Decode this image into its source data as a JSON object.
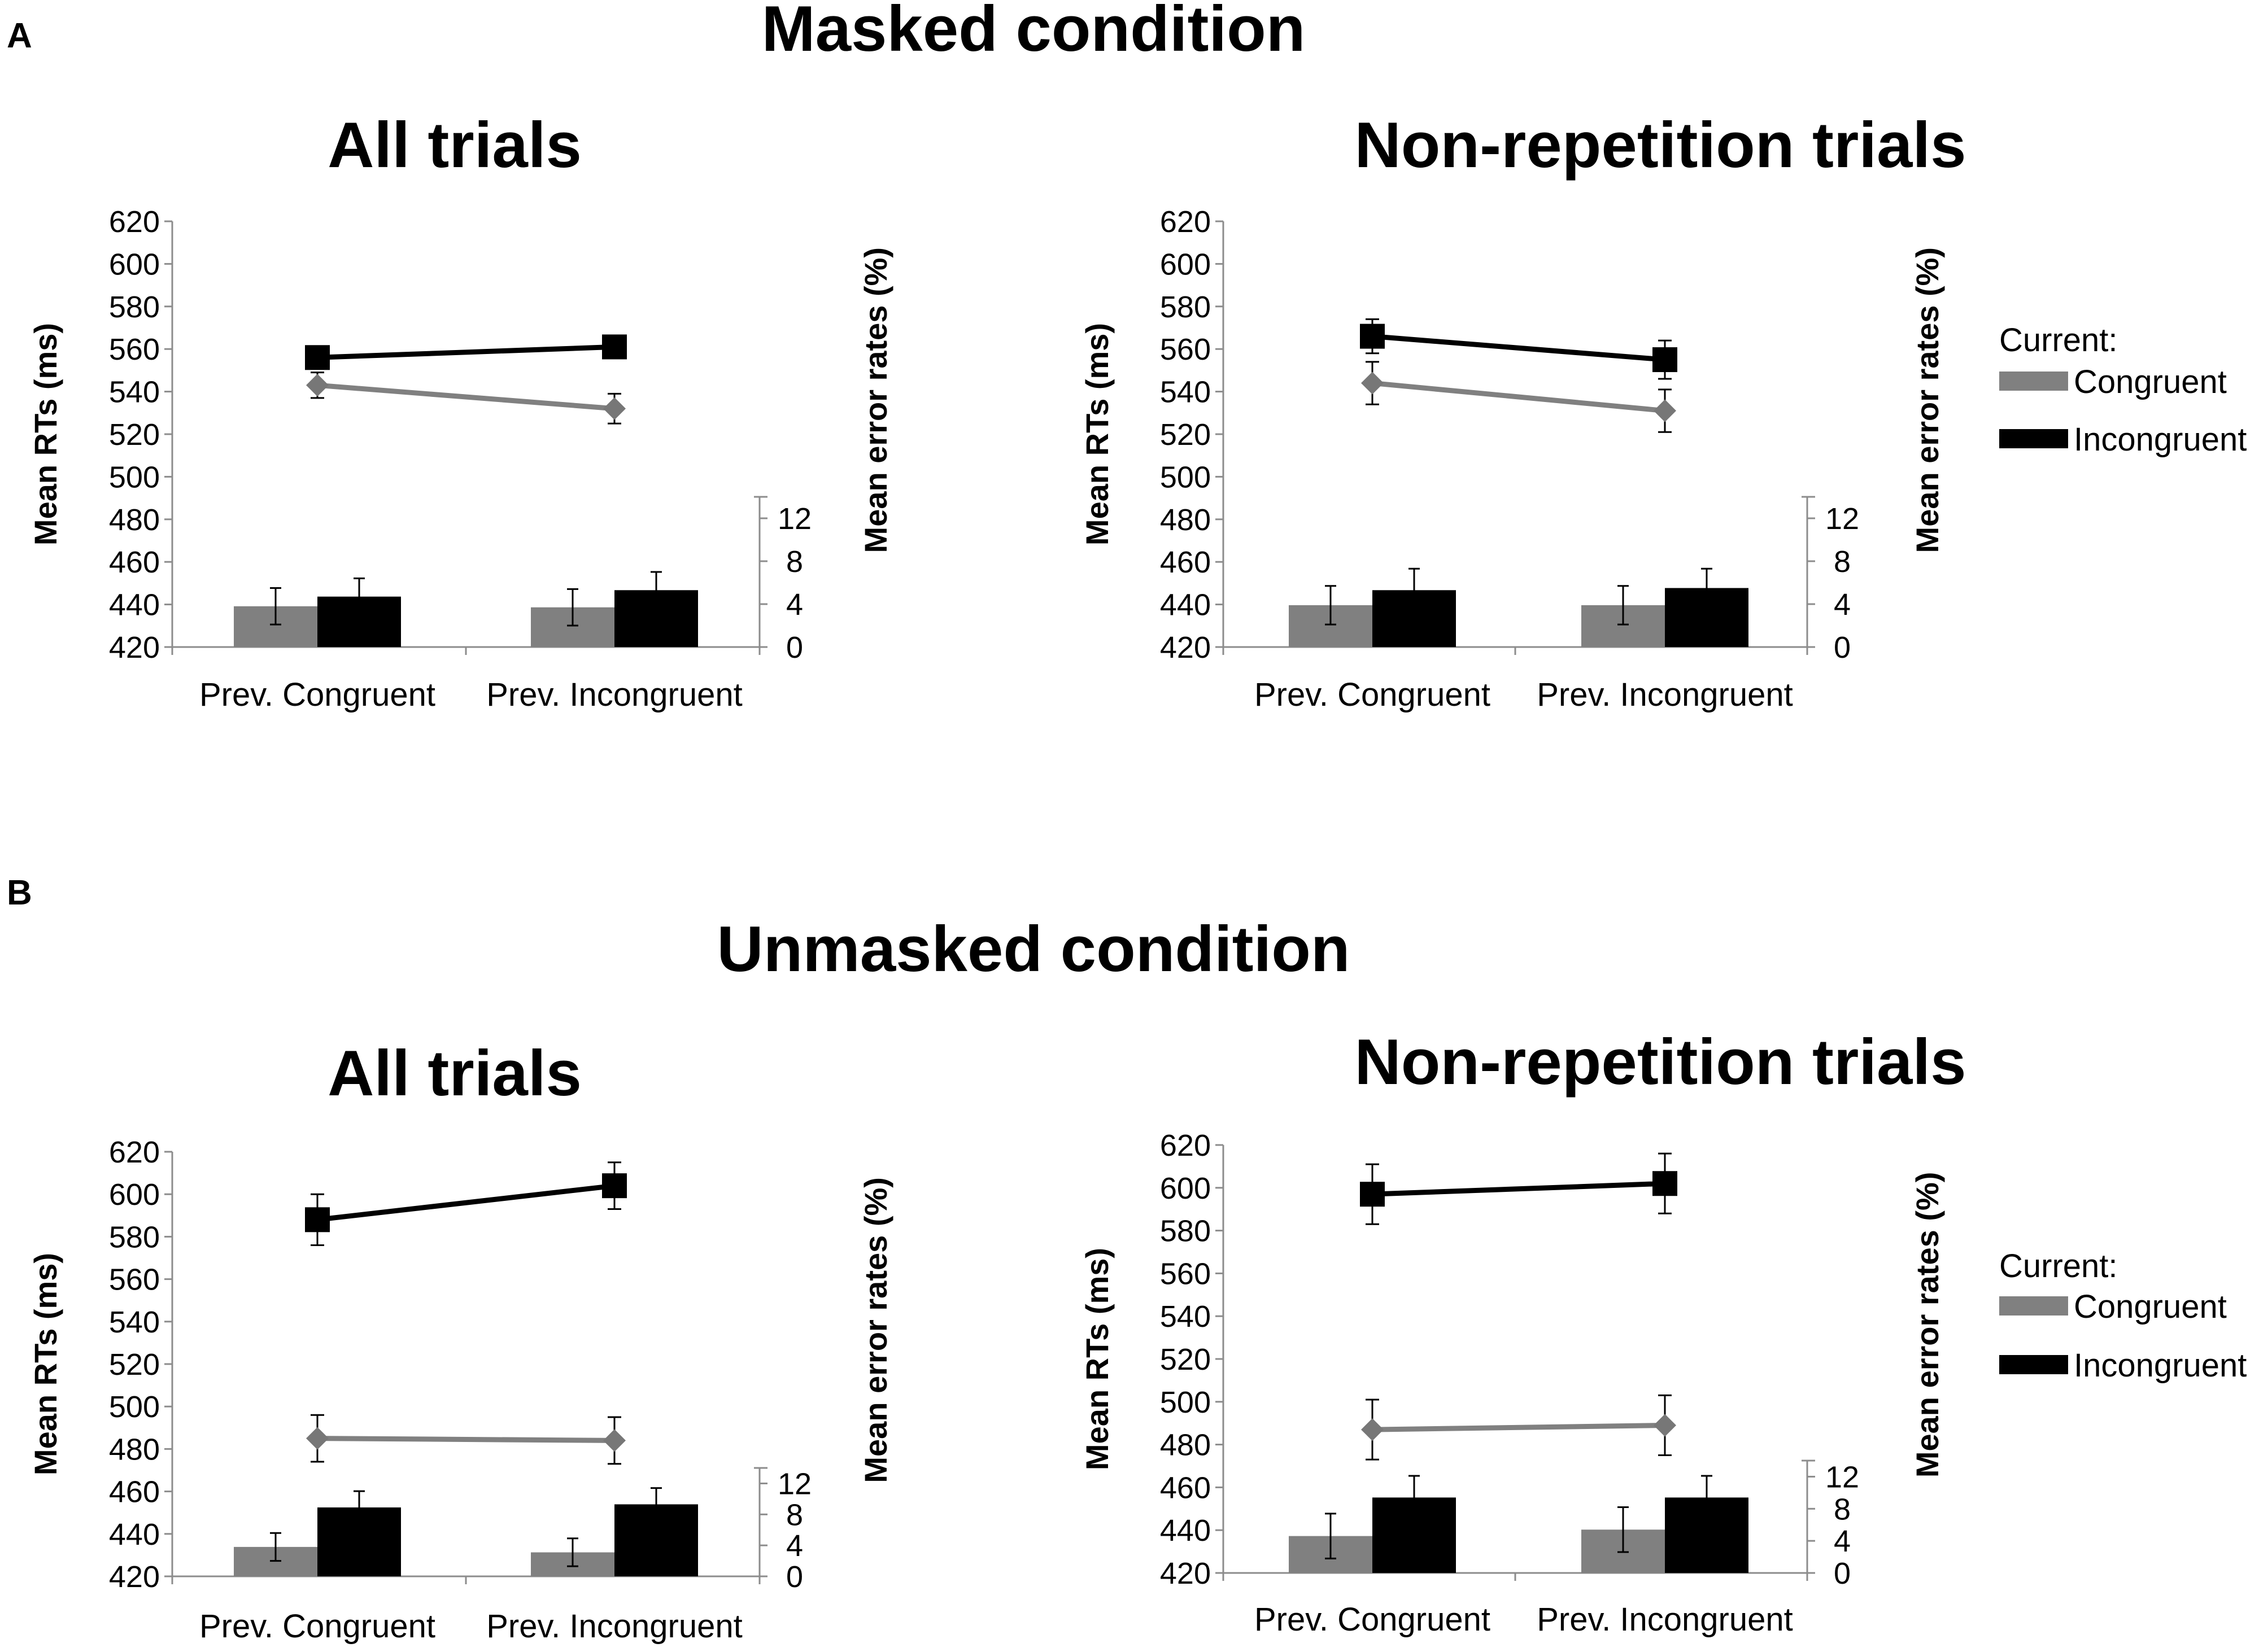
{
  "panels": [
    {
      "letter": "A",
      "title": "Masked condition"
    },
    {
      "letter": "B",
      "title": "Unmasked condition"
    }
  ],
  "legend": {
    "title": "Current:",
    "items": [
      {
        "label": "Congruent",
        "color": "#808080"
      },
      {
        "label": "Incongruent",
        "color": "#000000"
      }
    ]
  },
  "colors": {
    "congruent": "#808080",
    "incongruent": "#000000",
    "congruent_marker": "#777777",
    "axis": "#8c8c8c"
  },
  "chart_data": [
    {
      "type": "bar+line",
      "panel": "A",
      "title": "All trials",
      "categories": [
        "Prev. Congruent",
        "Prev. Incongruent"
      ],
      "ylabel": "Mean RTs (ms)",
      "ylim": [
        420,
        620
      ],
      "yticks": [
        620,
        600,
        580,
        560,
        540,
        520,
        500,
        480,
        460,
        440,
        420
      ],
      "y2label": "Mean error rates (%)",
      "y2lim": [
        0,
        14
      ],
      "y2ticks": [
        12,
        8,
        4,
        0
      ],
      "rt_series": [
        {
          "name": "Congruent",
          "values": [
            543,
            532
          ],
          "errors": [
            6,
            7
          ]
        },
        {
          "name": "Incongruent",
          "values": [
            556,
            561
          ],
          "errors": [
            5,
            5
          ]
        }
      ],
      "error_series": [
        {
          "name": "Congruent",
          "values": [
            3.8,
            3.7
          ],
          "errors": [
            1.7,
            1.7
          ]
        },
        {
          "name": "Incongruent",
          "values": [
            4.7,
            5.3
          ],
          "errors": [
            1.7,
            1.7
          ]
        }
      ]
    },
    {
      "type": "bar+line",
      "panel": "A",
      "title": "Non-repetition trials",
      "categories": [
        "Prev. Congruent",
        "Prev. Incongruent"
      ],
      "ylabel": "Mean RTs (ms)",
      "ylim": [
        420,
        620
      ],
      "yticks": [
        620,
        600,
        580,
        560,
        540,
        520,
        500,
        480,
        460,
        440,
        420
      ],
      "y2label": "Mean error rates (%)",
      "y2lim": [
        0,
        14
      ],
      "y2ticks": [
        12,
        8,
        4,
        0
      ],
      "rt_series": [
        {
          "name": "Congruent",
          "values": [
            544,
            531
          ],
          "errors": [
            10,
            10
          ]
        },
        {
          "name": "Incongruent",
          "values": [
            566,
            555
          ],
          "errors": [
            8,
            9
          ]
        }
      ],
      "error_series": [
        {
          "name": "Congruent",
          "values": [
            3.9,
            3.9
          ],
          "errors": [
            1.8,
            1.8
          ]
        },
        {
          "name": "Incongruent",
          "values": [
            5.3,
            5.5
          ],
          "errors": [
            2.0,
            1.8
          ]
        }
      ]
    },
    {
      "type": "bar+line",
      "panel": "B",
      "title": "All trials",
      "categories": [
        "Prev. Congruent",
        "Prev. Incongruent"
      ],
      "ylabel": "Mean RTs (ms)",
      "ylim": [
        420,
        620
      ],
      "yticks": [
        620,
        600,
        580,
        560,
        540,
        520,
        500,
        480,
        460,
        440,
        420
      ],
      "y2label": "Mean error rates (%)",
      "y2lim": [
        0,
        14
      ],
      "y2ticks": [
        12,
        8,
        4,
        0
      ],
      "rt_series": [
        {
          "name": "Congruent",
          "values": [
            485,
            484
          ],
          "errors": [
            11,
            11
          ]
        },
        {
          "name": "Incongruent",
          "values": [
            588,
            604
          ],
          "errors": [
            12,
            11
          ]
        }
      ],
      "error_series": [
        {
          "name": "Congruent",
          "values": [
            3.8,
            3.1
          ],
          "errors": [
            1.8,
            1.8
          ]
        },
        {
          "name": "Incongruent",
          "values": [
            8.9,
            9.3
          ],
          "errors": [
            2.1,
            2.1
          ]
        }
      ]
    },
    {
      "type": "bar+line",
      "panel": "B",
      "title": "Non-repetition trials",
      "categories": [
        "Prev. Congruent",
        "Prev. Incongruent"
      ],
      "ylabel": "Mean RTs (ms)",
      "ylim": [
        420,
        620
      ],
      "yticks": [
        620,
        600,
        580,
        560,
        540,
        520,
        500,
        480,
        460,
        440,
        420
      ],
      "y2label": "Mean error rates (%)",
      "y2lim": [
        0,
        14
      ],
      "y2ticks": [
        12,
        8,
        4,
        0
      ],
      "rt_series": [
        {
          "name": "Congruent",
          "values": [
            487,
            489
          ],
          "errors": [
            14,
            14
          ]
        },
        {
          "name": "Incongruent",
          "values": [
            597,
            602
          ],
          "errors": [
            14,
            14
          ]
        }
      ],
      "error_series": [
        {
          "name": "Congruent",
          "values": [
            4.6,
            5.4
          ],
          "errors": [
            2.8,
            2.8
          ]
        },
        {
          "name": "Incongruent",
          "values": [
            9.4,
            9.4
          ],
          "errors": [
            2.7,
            2.7
          ]
        }
      ]
    }
  ]
}
